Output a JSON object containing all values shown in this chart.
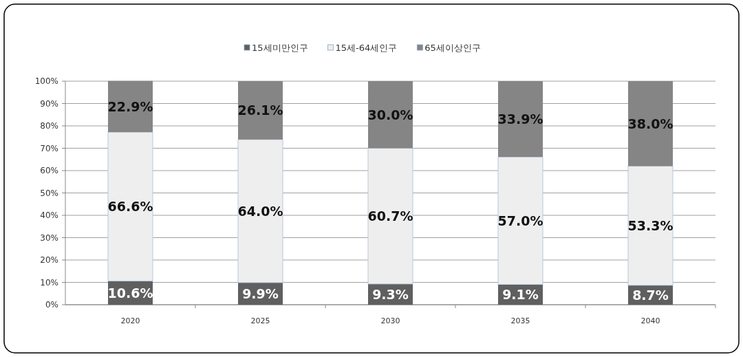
{
  "chart_data": {
    "type": "bar",
    "stacked": true,
    "categories": [
      "2020",
      "2025",
      "2030",
      "2035",
      "2040"
    ],
    "series": [
      {
        "name": "15세미만인구",
        "color": "#5f5f5f",
        "values": [
          10.6,
          9.9,
          9.3,
          9.1,
          8.7
        ],
        "value_labels": [
          "10.6%",
          "9.9%",
          "9.3%",
          "9.1%",
          "8.7%"
        ]
      },
      {
        "name": "15세-64세인구",
        "color": "#eeeeee",
        "values": [
          66.6,
          64.0,
          60.7,
          57.0,
          53.3
        ],
        "value_labels": [
          "66.6%",
          "64.0%",
          "60.7%",
          "57.0%",
          "53.3%"
        ]
      },
      {
        "name": "65세이상인구",
        "color": "#858585",
        "values": [
          22.9,
          26.1,
          30.0,
          33.9,
          38.0
        ],
        "value_labels": [
          "22.9%",
          "26.1%",
          "30.0%",
          "33.9%",
          "38.0%"
        ]
      }
    ],
    "ylim": [
      0,
      100
    ],
    "yticks": [
      {
        "value": 0,
        "label": "0%"
      },
      {
        "value": 10,
        "label": "10%"
      },
      {
        "value": 20,
        "label": "20%"
      },
      {
        "value": 30,
        "label": "30%"
      },
      {
        "value": 40,
        "label": "40%"
      },
      {
        "value": 50,
        "label": "50%"
      },
      {
        "value": 60,
        "label": "60%"
      },
      {
        "value": 70,
        "label": "70%"
      },
      {
        "value": 80,
        "label": "80%"
      },
      {
        "value": 90,
        "label": "90%"
      },
      {
        "value": 100,
        "label": "100%"
      }
    ],
    "grid": "y",
    "legend": "top"
  }
}
